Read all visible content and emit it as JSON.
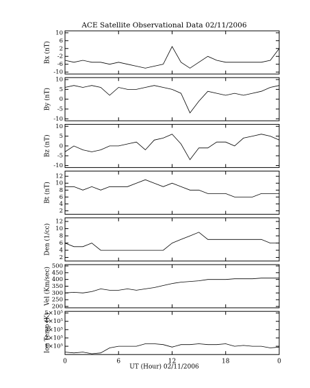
{
  "chart_data": {
    "type": "line",
    "title": "ACE Satellite Observational Data   02/11/2006",
    "xlabel": "UT (Hour)   02/11/2006",
    "x": [
      0,
      1,
      2,
      3,
      4,
      5,
      6,
      7,
      8,
      9,
      10,
      11,
      12,
      13,
      14,
      15,
      16,
      17,
      18,
      19,
      20,
      21,
      22,
      23,
      24
    ],
    "xlim": [
      0,
      24
    ],
    "xticks": [
      0,
      6,
      12,
      18,
      {
        "value": 24,
        "label": "0"
      }
    ],
    "color": "#000000",
    "panels": [
      {
        "ylabel": "Bx (nT)",
        "ylim": [
          -11,
          11
        ],
        "yticks": [
          -10,
          -6,
          -2,
          2,
          6,
          10
        ],
        "values": [
          -4,
          -5,
          -4,
          -5,
          -5,
          -6,
          -5,
          -6,
          -7,
          -8,
          -7,
          -6,
          3,
          -5,
          -8,
          -5,
          -2,
          -4,
          -5,
          -5,
          -5,
          -5,
          -5,
          -4,
          2
        ]
      },
      {
        "ylabel": "By (nT)",
        "ylim": [
          -11,
          11
        ],
        "yticks": [
          -10,
          -5,
          0,
          5,
          10
        ],
        "values": [
          6,
          7,
          6,
          7,
          6,
          2,
          6,
          5,
          5,
          6,
          7,
          6,
          5,
          3,
          -7,
          -1,
          4,
          3,
          2,
          3,
          2,
          3,
          4,
          6,
          7
        ]
      },
      {
        "ylabel": "Bz (nT)",
        "ylim": [
          -11,
          11
        ],
        "yticks": [
          -10,
          -5,
          0,
          5,
          10
        ],
        "values": [
          -3,
          0,
          -2,
          -3,
          -2,
          0,
          0,
          1,
          2,
          -2,
          3,
          4,
          6,
          1,
          -7,
          -1,
          -1,
          2,
          2,
          0,
          4,
          5,
          6,
          5,
          3
        ]
      },
      {
        "ylabel": "Bt (nT)",
        "ylim": [
          1,
          13.5
        ],
        "yticks": [
          2,
          4,
          6,
          8,
          10,
          12
        ],
        "values": [
          9,
          9,
          8,
          9,
          8,
          9,
          9,
          9,
          10,
          11,
          10,
          9,
          10,
          9,
          8,
          8,
          7,
          7,
          7,
          6,
          6,
          6,
          7,
          7,
          7
        ]
      },
      {
        "ylabel": "Den (1/cc)",
        "ylim": [
          1,
          13
        ],
        "yticks": [
          2,
          4,
          6,
          8,
          10,
          12
        ],
        "values": [
          6,
          5,
          5,
          6,
          4,
          4,
          4,
          4,
          4,
          4,
          4,
          4,
          6,
          7,
          8,
          9,
          7,
          7,
          7,
          7,
          7,
          7,
          7,
          6,
          6
        ]
      },
      {
        "ylabel": "Vel (Km/sec)",
        "ylim": [
          190,
          510
        ],
        "yticks": [
          200,
          250,
          300,
          350,
          400,
          450,
          500
        ],
        "values": [
          300,
          305,
          300,
          310,
          330,
          320,
          320,
          330,
          320,
          330,
          340,
          355,
          370,
          380,
          385,
          390,
          400,
          400,
          400,
          405,
          405,
          405,
          410,
          410,
          410
        ]
      },
      {
        "ylabel": "Ion Temp (K)",
        "ylim": [
          0,
          520000
        ],
        "yticks": [
          {
            "value": 100000,
            "label": "1×10⁵"
          },
          {
            "value": 200000,
            "label": "2×10⁵"
          },
          {
            "value": 300000,
            "label": "3×10⁵"
          },
          {
            "value": 400000,
            "label": "4×10⁵"
          },
          {
            "value": 500000,
            "label": "5×10⁵"
          }
        ],
        "values": [
          30000,
          20000,
          30000,
          10000,
          20000,
          80000,
          100000,
          100000,
          100000,
          130000,
          130000,
          120000,
          90000,
          120000,
          120000,
          130000,
          120000,
          120000,
          130000,
          100000,
          110000,
          100000,
          100000,
          80000,
          90000
        ]
      }
    ]
  }
}
